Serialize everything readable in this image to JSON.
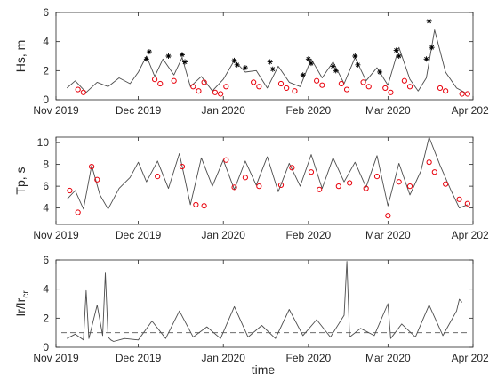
{
  "figure": {
    "xlabel": "time",
    "date_ticks": [
      "Nov 2019",
      "Dec 2019",
      "Jan 2020",
      "Feb 2020",
      "Mar 2020",
      "Apr 2020"
    ],
    "date_tick_values": [
      "2019-11-01",
      "2019-12-01",
      "2020-01-01",
      "2020-02-01",
      "2020-03-01",
      "2020-04-01"
    ]
  },
  "chart_data": [
    {
      "type": "line",
      "panel": "top",
      "ylabel": "Hs, m",
      "xlim": [
        "2019-11-01",
        "2020-04-01"
      ],
      "ylim": [
        0,
        6
      ],
      "yticks": [
        0,
        2,
        4,
        6
      ],
      "colors": {
        "line": "#4d4d4d",
        "black_markers": "#000000",
        "red_markers": "#e8000b"
      },
      "series": [
        {
          "type": "line",
          "x": [
            "2019-11-05",
            "2019-11-08",
            "2019-11-12",
            "2019-11-16",
            "2019-11-20",
            "2019-11-24",
            "2019-11-28",
            "2019-12-01",
            "2019-12-04",
            "2019-12-07",
            "2019-12-10",
            "2019-12-14",
            "2019-12-17",
            "2019-12-20",
            "2019-12-24",
            "2019-12-28",
            "2020-01-01",
            "2020-01-05",
            "2020-01-09",
            "2020-01-13",
            "2020-01-17",
            "2020-01-21",
            "2020-01-25",
            "2020-01-29",
            "2020-02-02",
            "2020-02-06",
            "2020-02-10",
            "2020-02-14",
            "2020-02-18",
            "2020-02-22",
            "2020-02-26",
            "2020-03-01",
            "2020-03-05",
            "2020-03-09",
            "2020-03-12",
            "2020-03-15",
            "2020-03-18",
            "2020-03-22",
            "2020-03-26",
            "2020-03-29"
          ],
          "y": [
            0.8,
            1.3,
            0.5,
            1.2,
            0.9,
            1.5,
            1.1,
            1.9,
            3.0,
            1.6,
            2.8,
            1.7,
            2.9,
            0.9,
            1.6,
            0.6,
            1.4,
            2.7,
            1.9,
            2.0,
            0.8,
            2.3,
            1.2,
            0.9,
            2.8,
            1.5,
            2.6,
            1.1,
            2.9,
            1.3,
            2.2,
            1.0,
            3.6,
            1.4,
            0.6,
            1.5,
            4.8,
            1.9,
            0.8,
            0.5
          ]
        },
        {
          "type": "scatter",
          "marker": "asterisk",
          "color": "black",
          "x": [
            "2019-12-04",
            "2019-12-05",
            "2019-12-12",
            "2019-12-17",
            "2019-12-18",
            "2020-01-05",
            "2020-01-06",
            "2020-01-09",
            "2020-01-18",
            "2020-01-19",
            "2020-01-30",
            "2020-02-01",
            "2020-02-02",
            "2020-02-10",
            "2020-02-11",
            "2020-02-18",
            "2020-02-19",
            "2020-02-27",
            "2020-03-04",
            "2020-03-05",
            "2020-03-15",
            "2020-03-16",
            "2020-03-17"
          ],
          "y": [
            2.8,
            3.3,
            3.0,
            3.1,
            2.6,
            2.7,
            2.4,
            2.2,
            2.6,
            2.1,
            1.7,
            2.8,
            2.5,
            2.3,
            2.0,
            3.0,
            2.4,
            1.9,
            3.4,
            3.0,
            2.8,
            5.4,
            3.6
          ]
        },
        {
          "type": "scatter",
          "marker": "circle",
          "color": "red",
          "x": [
            "2019-11-09",
            "2019-11-11",
            "2019-12-07",
            "2019-12-09",
            "2019-12-14",
            "2019-12-21",
            "2019-12-23",
            "2019-12-25",
            "2019-12-29",
            "2019-12-31",
            "2020-01-02",
            "2020-01-12",
            "2020-01-14",
            "2020-01-22",
            "2020-01-24",
            "2020-01-27",
            "2020-02-04",
            "2020-02-06",
            "2020-02-13",
            "2020-02-15",
            "2020-02-21",
            "2020-02-23",
            "2020-02-29",
            "2020-03-02",
            "2020-03-07",
            "2020-03-09",
            "2020-03-20",
            "2020-03-22",
            "2020-03-28",
            "2020-03-30"
          ],
          "y": [
            0.7,
            0.5,
            1.4,
            1.1,
            1.3,
            0.9,
            0.6,
            1.2,
            0.5,
            0.4,
            0.9,
            1.2,
            0.9,
            1.1,
            0.8,
            0.6,
            1.3,
            1.0,
            1.1,
            0.7,
            1.2,
            0.9,
            0.8,
            0.5,
            1.3,
            0.9,
            0.8,
            0.6,
            0.4,
            0.4
          ]
        }
      ]
    },
    {
      "type": "line",
      "panel": "middle",
      "ylabel": "Tp, s",
      "xlim": [
        "2019-11-01",
        "2020-04-01"
      ],
      "ylim": [
        2.5,
        10.5
      ],
      "yticks": [
        4,
        6,
        8,
        10
      ],
      "series": [
        {
          "type": "line",
          "x": [
            "2019-11-05",
            "2019-11-08",
            "2019-11-11",
            "2019-11-14",
            "2019-11-17",
            "2019-11-20",
            "2019-11-24",
            "2019-11-28",
            "2019-12-01",
            "2019-12-04",
            "2019-12-08",
            "2019-12-12",
            "2019-12-16",
            "2019-12-20",
            "2019-12-24",
            "2019-12-28",
            "2020-01-01",
            "2020-01-05",
            "2020-01-09",
            "2020-01-13",
            "2020-01-17",
            "2020-01-21",
            "2020-01-25",
            "2020-01-29",
            "2020-02-02",
            "2020-02-06",
            "2020-02-10",
            "2020-02-14",
            "2020-02-18",
            "2020-02-22",
            "2020-02-26",
            "2020-03-01",
            "2020-03-05",
            "2020-03-09",
            "2020-03-13",
            "2020-03-16",
            "2020-03-20",
            "2020-03-24",
            "2020-03-27",
            "2020-03-30"
          ],
          "y": [
            4.8,
            5.6,
            3.9,
            7.9,
            5.2,
            3.9,
            5.8,
            6.8,
            8.2,
            6.4,
            8.3,
            5.8,
            9.0,
            4.3,
            8.6,
            6.0,
            8.4,
            5.7,
            8.3,
            6.1,
            8.7,
            5.5,
            8.1,
            6.0,
            8.9,
            5.8,
            8.6,
            6.4,
            8.2,
            5.9,
            8.8,
            4.2,
            8.1,
            5.2,
            7.4,
            10.5,
            7.9,
            5.6,
            4.0,
            4.3
          ]
        },
        {
          "type": "scatter",
          "marker": "circle",
          "color": "red",
          "x": [
            "2019-11-06",
            "2019-11-09",
            "2019-11-14",
            "2019-11-16",
            "2019-12-08",
            "2019-12-17",
            "2019-12-22",
            "2019-12-25",
            "2020-01-02",
            "2020-01-05",
            "2020-01-09",
            "2020-01-14",
            "2020-01-22",
            "2020-01-26",
            "2020-02-02",
            "2020-02-05",
            "2020-02-12",
            "2020-02-16",
            "2020-02-22",
            "2020-02-26",
            "2020-03-01",
            "2020-03-05",
            "2020-03-09",
            "2020-03-16",
            "2020-03-18",
            "2020-03-22",
            "2020-03-27",
            "2020-03-30"
          ],
          "y": [
            5.6,
            3.6,
            7.8,
            6.6,
            6.9,
            7.8,
            4.3,
            4.2,
            8.4,
            5.9,
            6.8,
            6.0,
            6.1,
            7.7,
            7.3,
            5.7,
            6.0,
            6.3,
            5.8,
            6.9,
            3.3,
            6.4,
            6.0,
            8.2,
            7.3,
            6.2,
            4.8,
            4.4
          ]
        }
      ]
    },
    {
      "type": "line",
      "panel": "bottom",
      "ylabel": "Ir/Ircr",
      "xlabel": "time",
      "xlim": [
        "2019-11-01",
        "2020-04-01"
      ],
      "ylim": [
        0,
        6
      ],
      "yticks": [
        0,
        2,
        4,
        6
      ],
      "reference_line": {
        "y": 1,
        "style": "dashed"
      },
      "series": [
        {
          "type": "line",
          "x": [
            "2019-11-05",
            "2019-11-08",
            "2019-11-11",
            "2019-11-12",
            "2019-11-13",
            "2019-11-16",
            "2019-11-18",
            "2019-11-19",
            "2019-11-20",
            "2019-11-21",
            "2019-11-22",
            "2019-11-26",
            "2019-12-01",
            "2019-12-06",
            "2019-12-11",
            "2019-12-16",
            "2019-12-21",
            "2019-12-26",
            "2019-12-31",
            "2020-01-05",
            "2020-01-10",
            "2020-01-15",
            "2020-01-20",
            "2020-01-25",
            "2020-01-30",
            "2020-02-04",
            "2020-02-09",
            "2020-02-14",
            "2020-02-15",
            "2020-02-16",
            "2020-02-20",
            "2020-02-25",
            "2020-03-01",
            "2020-03-02",
            "2020-03-06",
            "2020-03-11",
            "2020-03-16",
            "2020-03-21",
            "2020-03-26",
            "2020-03-27",
            "2020-03-28"
          ],
          "y": [
            0.6,
            0.9,
            0.5,
            3.9,
            0.6,
            2.9,
            0.8,
            5.1,
            0.7,
            0.5,
            0.4,
            0.6,
            0.5,
            1.8,
            0.6,
            2.5,
            0.7,
            1.4,
            0.6,
            2.8,
            0.7,
            1.5,
            0.6,
            2.6,
            0.8,
            1.9,
            0.7,
            2.2,
            5.9,
            0.7,
            1.3,
            0.8,
            3.0,
            0.6,
            1.6,
            0.7,
            2.9,
            0.8,
            2.5,
            3.3,
            3.1
          ]
        }
      ]
    }
  ]
}
